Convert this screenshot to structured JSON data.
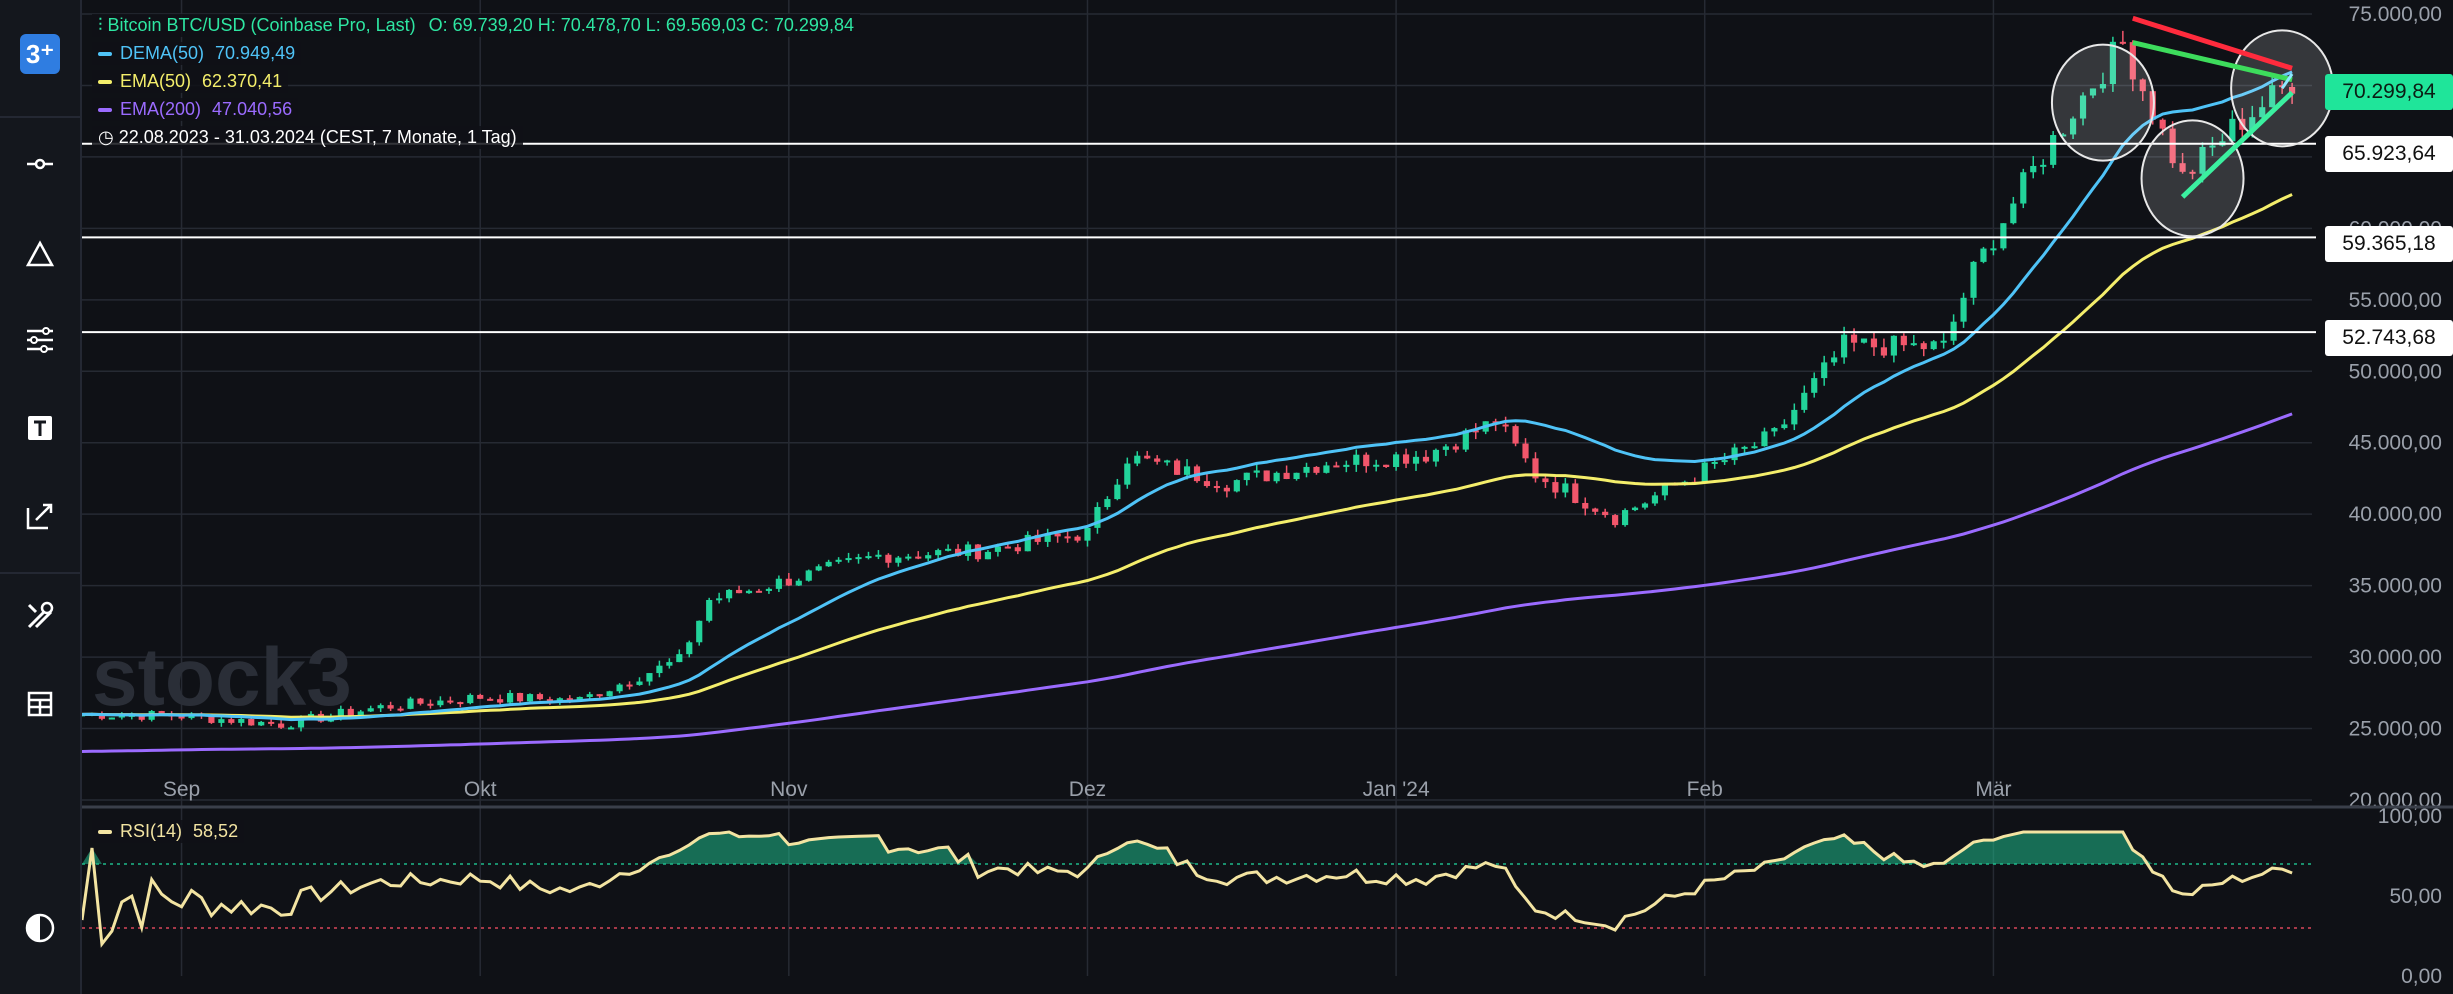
{
  "header": {
    "title": "Bitcoin BTC/USD (Coinbase Pro, Last)",
    "ohlc": "O: 69.739,20  H: 70.478,70  L: 69.569,03  C: 70.299,84",
    "range": "22.08.2023 - 31.03.2024  (CEST, 7 Monate, 1 Tag)"
  },
  "legend": [
    {
      "label": "DEMA(50)",
      "value": "70.949,49",
      "color": "#4fc3f7"
    },
    {
      "label": "EMA(50)",
      "value": "62.370,41",
      "color": "#f4ee6b"
    },
    {
      "label": "EMA(200)",
      "value": "47.040,56",
      "color": "#9b6bff"
    }
  ],
  "watermark": "stock3",
  "logo_text": "3⁺",
  "sidebar_icons": [
    "logo",
    "crosshair-line-icon",
    "triangle-icon",
    "indicator-settings-icon",
    "text-icon",
    "edit-arrow-icon",
    "tools-icon",
    "layout-icon",
    "contrast-icon"
  ],
  "rsi_legend": {
    "label": "RSI(14)",
    "value": "58,52"
  },
  "current_price": "70.299,84",
  "horizontal_levels": [
    "65.923,64",
    "59.365,18",
    "52.743,68"
  ],
  "colors": {
    "up": "#22d39a",
    "down": "#f2566b",
    "dema": "#4fc3f7",
    "ema50": "#f4ee6b",
    "ema200": "#9b6bff",
    "rsi": "#f3e4a2"
  },
  "chart_data": {
    "type": "candlestick",
    "x_labels": [
      "Sep",
      "Okt",
      "Nov",
      "Dez",
      "Jan '24",
      "Feb",
      "Mär"
    ],
    "y_ticks": [
      "75.000,00",
      "70.000,00",
      "65.000,00",
      "60.000,00",
      "55.000,00",
      "50.000,00",
      "45.000,00",
      "40.000,00",
      "35.000,00",
      "30.000,00",
      "25.000,00",
      "20.000,00"
    ],
    "ylim": [
      20000,
      75000
    ],
    "close_points": [
      [
        "2023-08-22",
        26000
      ],
      [
        "2023-09-01",
        25900
      ],
      [
        "2023-09-11",
        25300
      ],
      [
        "2023-09-21",
        26500
      ],
      [
        "2023-10-01",
        27200
      ],
      [
        "2023-10-11",
        27000
      ],
      [
        "2023-10-21",
        29800
      ],
      [
        "2023-10-24",
        34000
      ],
      [
        "2023-11-01",
        35400
      ],
      [
        "2023-11-10",
        37100
      ],
      [
        "2023-11-20",
        37400
      ],
      [
        "2023-12-01",
        38700
      ],
      [
        "2023-12-05",
        44000
      ],
      [
        "2023-12-15",
        42200
      ],
      [
        "2023-12-25",
        43600
      ],
      [
        "2024-01-04",
        44200
      ],
      [
        "2024-01-11",
        46500
      ],
      [
        "2024-01-15",
        42800
      ],
      [
        "2024-01-23",
        39800
      ],
      [
        "2024-02-01",
        43100
      ],
      [
        "2024-02-08",
        45500
      ],
      [
        "2024-02-15",
        51800
      ],
      [
        "2024-02-25",
        51700
      ],
      [
        "2024-02-28",
        57000
      ],
      [
        "2024-03-04",
        63000
      ],
      [
        "2024-03-09",
        68300
      ],
      [
        "2024-03-14",
        73000
      ],
      [
        "2024-03-20",
        63500
      ],
      [
        "2024-03-25",
        67000
      ],
      [
        "2024-03-31",
        70300
      ]
    ],
    "series": [
      {
        "name": "DEMA(50)",
        "last": 70949.49
      },
      {
        "name": "EMA(50)",
        "last": 62370.41
      },
      {
        "name": "EMA(200)",
        "last": 47040.56
      }
    ],
    "levels": [
      65923.64,
      59365.18,
      52743.68
    ],
    "rsi": {
      "name": "RSI(14)",
      "last": 58.52,
      "y_ticks": [
        "100,00",
        "50,00",
        "0,00"
      ],
      "overbought": 70,
      "oversold": 30
    }
  }
}
